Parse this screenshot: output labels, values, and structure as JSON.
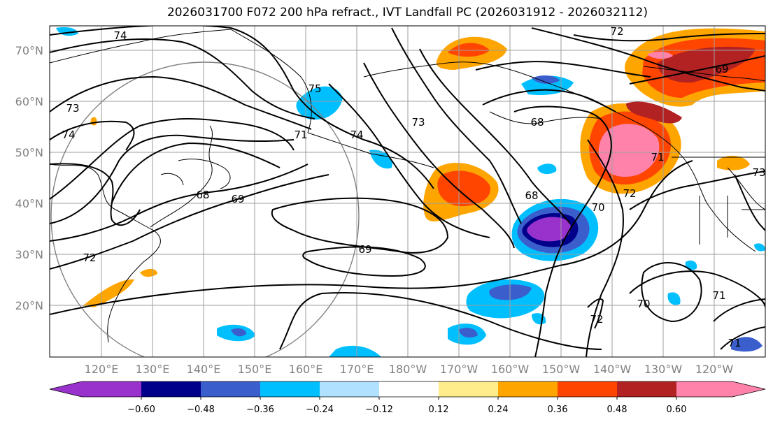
{
  "title": "2026031700 F072 200 hPa refract., IVT Landfall PC (2026031912 - 2026032112)",
  "lat_labels": [
    "70°N",
    "60°N",
    "50°N",
    "40°N",
    "30°N",
    "20°N"
  ],
  "lon_labels": [
    "120°E",
    "130°E",
    "140°E",
    "150°E",
    "160°E",
    "170°E",
    "180°W",
    "170°W",
    "160°W",
    "150°W",
    "140°W",
    "130°W",
    "120°W"
  ],
  "contour_labels": [
    "72",
    "74",
    "73",
    "74",
    "75",
    "74",
    "73",
    "68",
    "71",
    "69",
    "68",
    "70",
    "69",
    "72",
    "71",
    "70",
    "72",
    "73",
    "72",
    "71",
    "68",
    "69",
    "71"
  ],
  "colorbar": {
    "ticks": [
      "−0.60",
      "−0.48",
      "−0.36",
      "−0.24",
      "−0.12",
      "0.12",
      "0.24",
      "0.36",
      "0.48",
      "0.60"
    ],
    "colors": [
      "#9932cc",
      "#00008b",
      "#3a5fcd",
      "#00bfff",
      "#b0e2ff",
      "#ffffff",
      "#ffec8b",
      "#ffa500",
      "#ff4500",
      "#b22222",
      "#ff82ab"
    ]
  }
}
